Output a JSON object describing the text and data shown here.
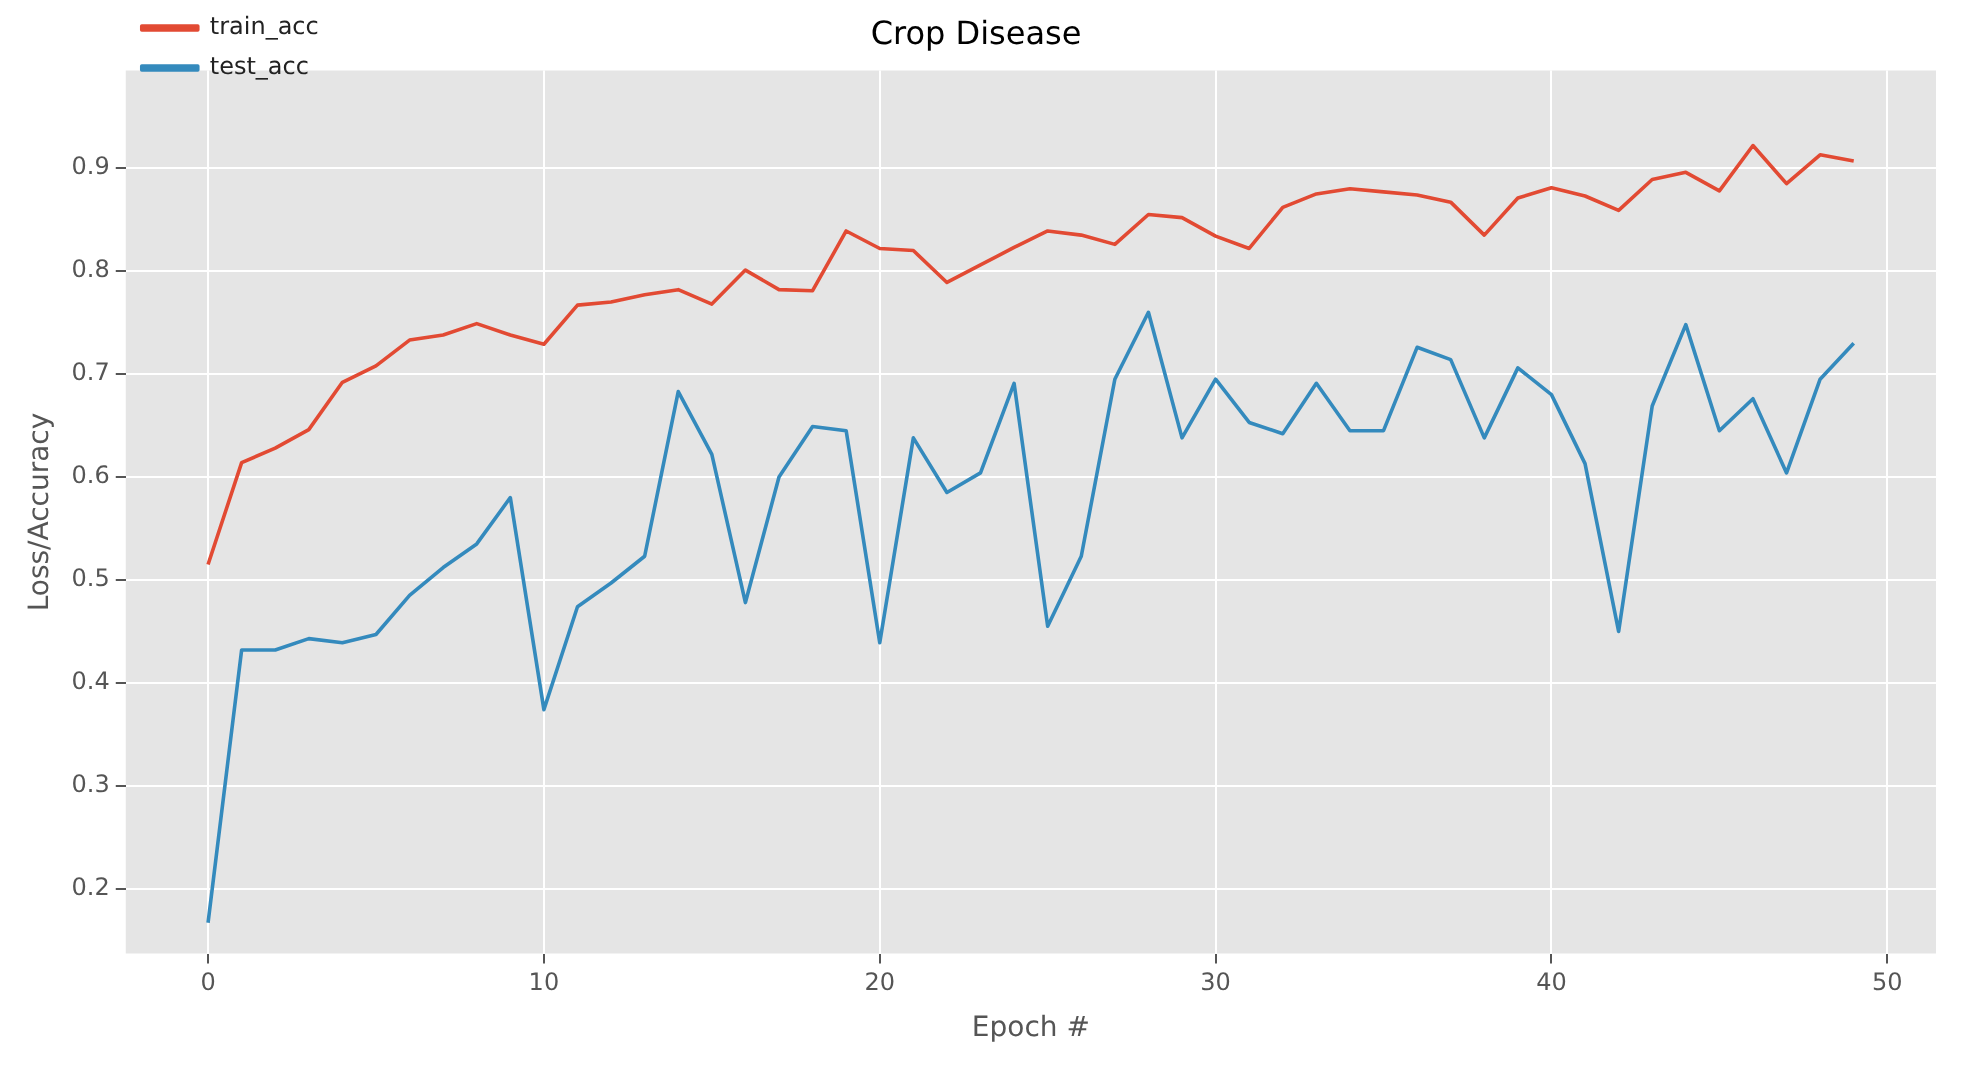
{
  "chart_data": {
    "type": "line",
    "title": "Crop Disease",
    "xlabel": "Epoch #",
    "ylabel": "Loss/Accuracy",
    "x": [
      0,
      1,
      2,
      3,
      4,
      5,
      6,
      7,
      8,
      9,
      10,
      11,
      12,
      13,
      14,
      15,
      16,
      17,
      18,
      19,
      20,
      21,
      22,
      23,
      24,
      25,
      26,
      27,
      28,
      29,
      30,
      31,
      32,
      33,
      34,
      35,
      36,
      37,
      38,
      39,
      40,
      41,
      42,
      43,
      44,
      45,
      46,
      47,
      48,
      49
    ],
    "series": [
      {
        "name": "train_acc",
        "color": "#e24a33",
        "values": [
          0.515,
          0.614,
          0.628,
          0.646,
          0.692,
          0.708,
          0.733,
          0.738,
          0.749,
          0.738,
          0.729,
          0.767,
          0.77,
          0.777,
          0.782,
          0.768,
          0.801,
          0.782,
          0.781,
          0.839,
          0.822,
          0.82,
          0.789,
          0.806,
          0.823,
          0.839,
          0.835,
          0.826,
          0.855,
          0.852,
          0.834,
          0.822,
          0.862,
          0.875,
          0.88,
          0.877,
          0.874,
          0.867,
          0.835,
          0.871,
          0.881,
          0.873,
          0.859,
          0.889,
          0.896,
          0.878,
          0.922,
          0.885,
          0.913,
          0.907
        ]
      },
      {
        "name": "test_acc",
        "color": "#348abd",
        "values": [
          0.167,
          0.432,
          0.432,
          0.443,
          0.439,
          0.447,
          0.485,
          0.512,
          0.535,
          0.58,
          0.374,
          0.474,
          0.497,
          0.523,
          0.683,
          0.622,
          0.478,
          0.6,
          0.649,
          0.645,
          0.439,
          0.638,
          0.585,
          0.604,
          0.691,
          0.455,
          0.523,
          0.695,
          0.76,
          0.638,
          0.695,
          0.653,
          0.642,
          0.691,
          0.645,
          0.645,
          0.726,
          0.714,
          0.638,
          0.706,
          0.68,
          0.613,
          0.45,
          0.669,
          0.748,
          0.645,
          0.676,
          0.604,
          0.695,
          0.73
        ]
      }
    ],
    "xlim": [
      -2.45,
      51.45
    ],
    "xticks": [
      0,
      10,
      20,
      30,
      40,
      50
    ],
    "ylim": [
      0.137,
      0.995
    ],
    "yticks": [
      0.2,
      0.3,
      0.4,
      0.5,
      0.6,
      0.7,
      0.8,
      0.9
    ],
    "grid": true,
    "legend": "top left",
    "marker": "none",
    "line_style": "solid"
  }
}
